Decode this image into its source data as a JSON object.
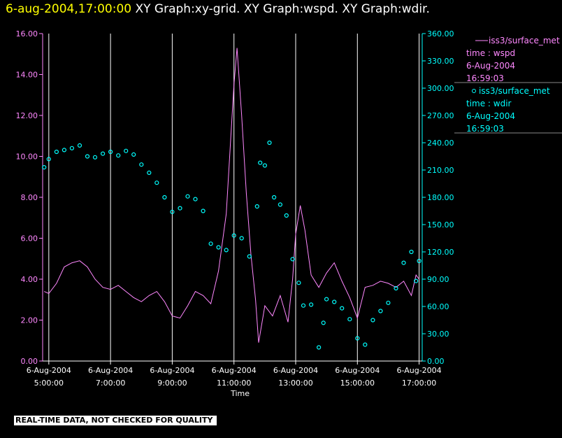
{
  "title": {
    "timestamp": "6-aug-2004,17:00:00",
    "graphs": "XY Graph:xy-grid.  XY Graph:wspd.  XY Graph:wdir."
  },
  "footer": {
    "quality_notice": "REAL-TIME DATA, NOT CHECKED FOR QUALITY"
  },
  "chart_data": {
    "type": "line",
    "xlabel": "Time",
    "xlim_hours": [
      4.8,
      17.1
    ],
    "x_ticks": [
      {
        "date": "6-Aug-2004",
        "time": "5:00:00",
        "hour": 5
      },
      {
        "date": "6-Aug-2004",
        "time": "7:00:00",
        "hour": 7
      },
      {
        "date": "6-Aug-2004",
        "time": "9:00:00",
        "hour": 9
      },
      {
        "date": "6-Aug-2004",
        "time": "11:00:00",
        "hour": 11
      },
      {
        "date": "6-Aug-2004",
        "time": "13:00:00",
        "hour": 13
      },
      {
        "date": "6-Aug-2004",
        "time": "15:00:00",
        "hour": 15
      },
      {
        "date": "6-Aug-2004",
        "time": "17:00:00",
        "hour": 17
      }
    ],
    "y_left": {
      "ylim": [
        0,
        16
      ],
      "ticks": [
        "0.00",
        "2.00",
        "4.00",
        "6.00",
        "8.00",
        "10.00",
        "12.00",
        "14.00",
        "16.00"
      ],
      "color": "#ff88ff"
    },
    "y_right": {
      "ylim": [
        0,
        360
      ],
      "ticks": [
        "0.00",
        "30.00",
        "60.00",
        "90.00",
        "120.00",
        "150.00",
        "180.00",
        "210.00",
        "240.00",
        "270.00",
        "300.00",
        "330.00",
        "360.00"
      ],
      "color": "#00ffff"
    },
    "grid": "vertical",
    "legend_position": "right",
    "series": [
      {
        "name": "iss3/surface_met",
        "legend_lines": [
          "time : wspd",
          "6-Aug-2004",
          "16:59:03"
        ],
        "style": "line",
        "axis": "left",
        "color": "#ff88ff",
        "points": [
          [
            4.85,
            3.4
          ],
          [
            5.0,
            3.3
          ],
          [
            5.25,
            3.8
          ],
          [
            5.5,
            4.6
          ],
          [
            5.75,
            4.8
          ],
          [
            6.0,
            4.9
          ],
          [
            6.25,
            4.6
          ],
          [
            6.5,
            4.0
          ],
          [
            6.75,
            3.6
          ],
          [
            7.0,
            3.5
          ],
          [
            7.25,
            3.7
          ],
          [
            7.5,
            3.4
          ],
          [
            7.75,
            3.1
          ],
          [
            8.0,
            2.9
          ],
          [
            8.25,
            3.2
          ],
          [
            8.5,
            3.4
          ],
          [
            8.75,
            2.9
          ],
          [
            9.0,
            2.2
          ],
          [
            9.25,
            2.1
          ],
          [
            9.5,
            2.7
          ],
          [
            9.75,
            3.4
          ],
          [
            10.0,
            3.2
          ],
          [
            10.25,
            2.8
          ],
          [
            10.5,
            4.4
          ],
          [
            10.75,
            7.2
          ],
          [
            10.9,
            11.0
          ],
          [
            11.0,
            13.5
          ],
          [
            11.1,
            15.3
          ],
          [
            11.25,
            12.0
          ],
          [
            11.4,
            8.2
          ],
          [
            11.55,
            5.2
          ],
          [
            11.7,
            3.0
          ],
          [
            11.8,
            0.9
          ],
          [
            12.0,
            2.7
          ],
          [
            12.25,
            2.2
          ],
          [
            12.5,
            3.2
          ],
          [
            12.75,
            1.9
          ],
          [
            12.9,
            4.0
          ],
          [
            13.0,
            6.2
          ],
          [
            13.15,
            7.6
          ],
          [
            13.3,
            6.4
          ],
          [
            13.5,
            4.2
          ],
          [
            13.75,
            3.6
          ],
          [
            14.0,
            4.3
          ],
          [
            14.25,
            4.8
          ],
          [
            14.5,
            3.9
          ],
          [
            14.75,
            3.1
          ],
          [
            15.0,
            2.1
          ],
          [
            15.25,
            3.6
          ],
          [
            15.5,
            3.7
          ],
          [
            15.75,
            3.9
          ],
          [
            16.0,
            3.8
          ],
          [
            16.25,
            3.6
          ],
          [
            16.5,
            3.9
          ],
          [
            16.75,
            3.2
          ],
          [
            16.9,
            4.2
          ],
          [
            17.0,
            4.0
          ]
        ]
      },
      {
        "name": "iss3/surface_met",
        "legend_lines": [
          "time : wdir",
          "6-Aug-2004",
          "16:59:03"
        ],
        "style": "scatter",
        "axis": "right",
        "color": "#00ffff",
        "points": [
          [
            4.85,
            213
          ],
          [
            5.0,
            222
          ],
          [
            5.25,
            230
          ],
          [
            5.5,
            232
          ],
          [
            5.75,
            234
          ],
          [
            6.0,
            237
          ],
          [
            6.25,
            225
          ],
          [
            6.5,
            224
          ],
          [
            6.75,
            228
          ],
          [
            7.0,
            230
          ],
          [
            7.25,
            226
          ],
          [
            7.5,
            231
          ],
          [
            7.75,
            227
          ],
          [
            8.0,
            216
          ],
          [
            8.25,
            207
          ],
          [
            8.5,
            196
          ],
          [
            8.75,
            180
          ],
          [
            9.0,
            164
          ],
          [
            9.25,
            168
          ],
          [
            9.5,
            181
          ],
          [
            9.75,
            178
          ],
          [
            10.0,
            165
          ],
          [
            10.25,
            129
          ],
          [
            10.5,
            125
          ],
          [
            10.75,
            122
          ],
          [
            11.0,
            138
          ],
          [
            11.25,
            135
          ],
          [
            11.5,
            115
          ],
          [
            11.75,
            170
          ],
          [
            11.85,
            218
          ],
          [
            12.0,
            215
          ],
          [
            12.15,
            240
          ],
          [
            12.3,
            180
          ],
          [
            12.5,
            172
          ],
          [
            12.7,
            160
          ],
          [
            12.9,
            112
          ],
          [
            13.1,
            86
          ],
          [
            13.25,
            61
          ],
          [
            13.5,
            62
          ],
          [
            13.75,
            15
          ],
          [
            13.9,
            42
          ],
          [
            14.0,
            68
          ],
          [
            14.25,
            65
          ],
          [
            14.5,
            58
          ],
          [
            14.75,
            46
          ],
          [
            15.0,
            25
          ],
          [
            15.25,
            18
          ],
          [
            15.5,
            45
          ],
          [
            15.75,
            55
          ],
          [
            16.0,
            64
          ],
          [
            16.25,
            80
          ],
          [
            16.5,
            108
          ],
          [
            16.75,
            120
          ],
          [
            16.9,
            88
          ],
          [
            17.0,
            110
          ]
        ]
      }
    ]
  }
}
